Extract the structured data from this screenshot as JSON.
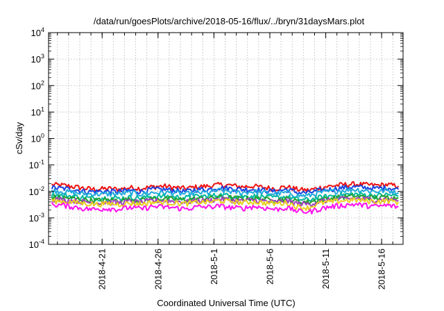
{
  "chart_data": {
    "type": "line",
    "title": "/data/run/goesPlots/archive/2018-05-16/flux/../bryn/31daysMars.plot",
    "xlabel": "Coordinated Universal Time (UTC)",
    "ylabel": "cSv/day",
    "yscale": "log",
    "ylim": [
      0.0001,
      10000
    ],
    "xlim": [
      "2018-04-16T05:00",
      "2018-05-17T22:00"
    ],
    "grid": true,
    "y_ticks": [
      {
        "base": "10",
        "exp": "-4"
      },
      {
        "base": "10",
        "exp": "-3"
      },
      {
        "base": "10",
        "exp": "-2"
      },
      {
        "base": "10",
        "exp": "-1"
      },
      {
        "base": "10",
        "exp": "0"
      },
      {
        "base": "10",
        "exp": "1"
      },
      {
        "base": "10",
        "exp": "2"
      },
      {
        "base": "10",
        "exp": "3"
      },
      {
        "base": "10",
        "exp": "4"
      }
    ],
    "x_ticks": [
      "2018-4-21",
      "2018-4-26",
      "2018-5-1",
      "2018-5-6",
      "2018-5-11",
      "2018-5-16"
    ],
    "x_tick_dates": [
      "2018-04-21",
      "2018-04-26",
      "2018-05-01",
      "2018-05-06",
      "2018-05-11",
      "2018-05-16"
    ],
    "x_minor_dates": [
      "2018-04-17",
      "2018-04-18",
      "2018-04-19",
      "2018-04-20",
      "2018-04-21",
      "2018-04-22",
      "2018-04-23",
      "2018-04-24",
      "2018-04-25",
      "2018-04-26",
      "2018-04-27",
      "2018-04-28",
      "2018-04-29",
      "2018-04-30",
      "2018-05-01",
      "2018-05-02",
      "2018-05-03",
      "2018-05-04",
      "2018-05-05",
      "2018-05-06",
      "2018-05-07",
      "2018-05-08",
      "2018-05-09",
      "2018-05-10",
      "2018-05-11",
      "2018-05-12",
      "2018-05-13",
      "2018-05-14",
      "2018-05-15",
      "2018-05-16",
      "2018-05-17"
    ],
    "x": [
      "2018-04-16",
      "2018-04-17",
      "2018-04-18",
      "2018-04-19",
      "2018-04-20",
      "2018-04-21",
      "2018-04-22",
      "2018-04-23",
      "2018-04-24",
      "2018-04-25",
      "2018-04-26",
      "2018-04-27",
      "2018-04-28",
      "2018-04-29",
      "2018-04-30",
      "2018-05-01",
      "2018-05-02",
      "2018-05-03",
      "2018-05-04",
      "2018-05-05",
      "2018-05-06",
      "2018-05-07",
      "2018-05-08",
      "2018-05-09",
      "2018-05-10",
      "2018-05-11",
      "2018-05-12",
      "2018-05-13",
      "2018-05-14",
      "2018-05-15",
      "2018-05-16",
      "2018-05-17"
    ],
    "series": [
      {
        "color": "#ee1111",
        "values": [
          0.018,
          0.017,
          0.015,
          0.013,
          0.012,
          0.013,
          0.012,
          0.014,
          0.013,
          0.015,
          0.016,
          0.014,
          0.013,
          0.015,
          0.016,
          0.018,
          0.017,
          0.015,
          0.016,
          0.014,
          0.013,
          0.015,
          0.012,
          0.011,
          0.014,
          0.016,
          0.018,
          0.019,
          0.018,
          0.017,
          0.018,
          0.016
        ]
      },
      {
        "color": "#1a44e0",
        "values": [
          0.014,
          0.013,
          0.012,
          0.01,
          0.01,
          0.01,
          0.01,
          0.011,
          0.01,
          0.012,
          0.012,
          0.011,
          0.01,
          0.012,
          0.012,
          0.014,
          0.013,
          0.012,
          0.012,
          0.011,
          0.01,
          0.012,
          0.009,
          0.009,
          0.011,
          0.012,
          0.014,
          0.015,
          0.014,
          0.013,
          0.014,
          0.012
        ]
      },
      {
        "color": "#22aadd",
        "values": [
          0.011,
          0.01,
          0.009,
          0.008,
          0.008,
          0.008,
          0.008,
          0.009,
          0.008,
          0.009,
          0.009,
          0.009,
          0.008,
          0.009,
          0.009,
          0.011,
          0.01,
          0.009,
          0.01,
          0.009,
          0.008,
          0.009,
          0.007,
          0.007,
          0.009,
          0.01,
          0.011,
          0.012,
          0.011,
          0.01,
          0.011,
          0.009
        ]
      },
      {
        "color": "#00b8a0",
        "values": [
          0.0075,
          0.007,
          0.0065,
          0.0058,
          0.0055,
          0.0058,
          0.0055,
          0.006,
          0.0057,
          0.0065,
          0.0065,
          0.0062,
          0.0058,
          0.0065,
          0.0066,
          0.0075,
          0.007,
          0.0064,
          0.0068,
          0.0062,
          0.0058,
          0.0064,
          0.005,
          0.0048,
          0.006,
          0.0068,
          0.0075,
          0.008,
          0.0076,
          0.007,
          0.0075,
          0.0066
        ]
      },
      {
        "color": "#22a030",
        "values": [
          0.0062,
          0.0058,
          0.0054,
          0.0048,
          0.0046,
          0.0048,
          0.0046,
          0.005,
          0.0047,
          0.0054,
          0.0054,
          0.0051,
          0.0048,
          0.0054,
          0.0055,
          0.0062,
          0.0058,
          0.0053,
          0.0056,
          0.0051,
          0.0048,
          0.0053,
          0.0042,
          0.004,
          0.005,
          0.0056,
          0.0062,
          0.0066,
          0.0063,
          0.0058,
          0.0062,
          0.0055
        ]
      },
      {
        "color": "#a040c0",
        "values": [
          0.0052,
          0.0048,
          0.0045,
          0.004,
          0.0038,
          0.004,
          0.0038,
          0.0042,
          0.0039,
          0.0045,
          0.0045,
          0.0043,
          0.004,
          0.0045,
          0.0046,
          0.0052,
          0.0048,
          0.0044,
          0.0047,
          0.0043,
          0.004,
          0.0044,
          0.0035,
          0.0033,
          0.0042,
          0.0047,
          0.0052,
          0.0055,
          0.0052,
          0.0048,
          0.0052,
          0.0046
        ]
      },
      {
        "color": "#e8d020",
        "values": [
          0.0045,
          0.0042,
          0.0039,
          0.0035,
          0.0033,
          0.0035,
          0.0033,
          0.0036,
          0.0034,
          0.0039,
          0.0039,
          0.0037,
          0.0035,
          0.0039,
          0.004,
          0.0045,
          0.0042,
          0.0038,
          0.0041,
          0.0037,
          0.0035,
          0.0038,
          0.0026,
          0.0024,
          0.0036,
          0.0041,
          0.0045,
          0.0048,
          0.0045,
          0.0042,
          0.0045,
          0.004
        ]
      },
      {
        "color": "#ff10ee",
        "values": [
          0.0032,
          0.003,
          0.0026,
          0.0022,
          0.0021,
          0.0023,
          0.0021,
          0.0025,
          0.0022,
          0.0027,
          0.0026,
          0.0024,
          0.0022,
          0.0026,
          0.0026,
          0.0028,
          0.0025,
          0.0023,
          0.0027,
          0.0024,
          0.0021,
          0.0024,
          0.0018,
          0.0017,
          0.0022,
          0.0027,
          0.003,
          0.0033,
          0.003,
          0.0027,
          0.003,
          0.0026
        ]
      }
    ]
  }
}
